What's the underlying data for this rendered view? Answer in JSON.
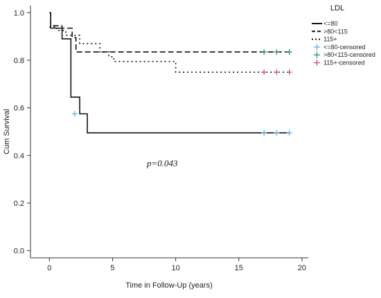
{
  "chart_data": {
    "type": "line",
    "subtype": "kaplan-meier",
    "xlabel": "Time in Follow-Up (years)",
    "ylabel": "Cum Survival",
    "xlim": [
      -1.5,
      20.5
    ],
    "ylim": [
      -0.03,
      1.03
    ],
    "xticks": [
      0,
      5,
      10,
      15,
      20
    ],
    "yticks": [
      0.0,
      0.2,
      0.4,
      0.6,
      0.8,
      1.0
    ],
    "ytick_labels": [
      "0.0",
      "0.2",
      "0.4",
      "0.6",
      "0.8",
      "1.0"
    ],
    "grid": false,
    "legend_title": "LDL",
    "legend_position": "top-right",
    "annotation": "p=0.043",
    "series": [
      {
        "name": "<=80",
        "color": "#111111",
        "style": "solid",
        "steps": [
          [
            0,
            1.0
          ],
          [
            0.1,
            0.935
          ],
          [
            1,
            0.89
          ],
          [
            1.7,
            0.645
          ],
          [
            2.4,
            0.575
          ],
          [
            3,
            0.495
          ],
          [
            19,
            0.495
          ]
        ],
        "censored_color": "#5aaee0",
        "censored": [
          [
            2,
            0.575
          ],
          [
            17,
            0.495
          ],
          [
            18,
            0.495
          ],
          [
            19,
            0.495
          ]
        ]
      },
      {
        "name": ">80<115",
        "color": "#111111",
        "style": "dashed",
        "steps": [
          [
            0,
            1.0
          ],
          [
            0.1,
            0.945
          ],
          [
            1,
            0.935
          ],
          [
            1.8,
            0.895
          ],
          [
            2.1,
            0.835
          ],
          [
            19,
            0.835
          ]
        ],
        "censored_color": "#2e8b7a",
        "censored": [
          [
            17,
            0.835
          ],
          [
            18,
            0.835
          ],
          [
            19,
            0.835
          ]
        ]
      },
      {
        "name": "115+",
        "color": "#111111",
        "style": "dotted",
        "steps": [
          [
            0,
            0.94
          ],
          [
            0.6,
            0.925
          ],
          [
            1.3,
            0.905
          ],
          [
            2.4,
            0.87
          ],
          [
            4,
            0.835
          ],
          [
            4.7,
            0.815
          ],
          [
            5.1,
            0.795
          ],
          [
            10,
            0.75
          ],
          [
            19,
            0.75
          ]
        ],
        "censored_color": "#d24b7e",
        "censored": [
          [
            17,
            0.75
          ],
          [
            18,
            0.75
          ],
          [
            19,
            0.75
          ]
        ]
      }
    ],
    "legend": [
      {
        "label": "<=80",
        "kind": "line",
        "style": "solid"
      },
      {
        "label": ">80<115",
        "kind": "line",
        "style": "dashed"
      },
      {
        "label": "115+",
        "kind": "line",
        "style": "dotted"
      },
      {
        "label": "<=80-censored",
        "kind": "censored",
        "color": "#5aaee0"
      },
      {
        "label": ">80<115-censored",
        "kind": "censored",
        "color": "#2e8b7a"
      },
      {
        "label": "115+-censored",
        "kind": "censored",
        "color": "#d24b7e"
      }
    ]
  }
}
